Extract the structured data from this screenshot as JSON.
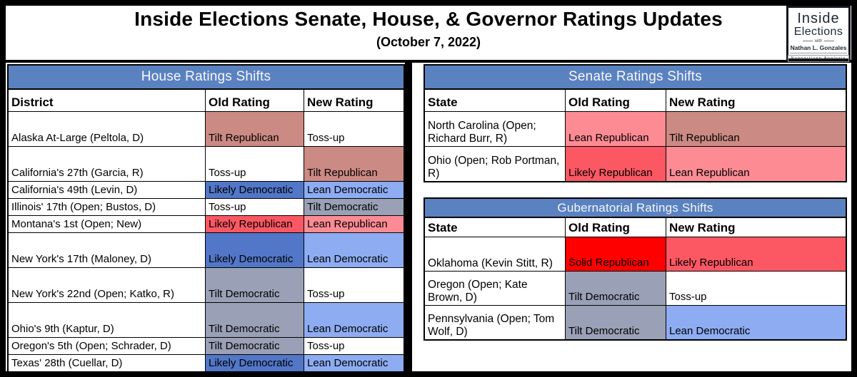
{
  "header": {
    "title": "Inside Elections Senate, House, & Governor Ratings Updates",
    "subtitle": "(October 7, 2022)",
    "logo": {
      "name_top": "Inside",
      "name_bottom": "Elections",
      "with_label": "with",
      "author": "Nathan L. Gonzales",
      "tagline": "Nonpartisan Analysis"
    }
  },
  "colors": {
    "table_header_bg": "#5b82c0",
    "border": "#000000"
  },
  "rating_colors": {
    "Solid Republican": "#fe0000",
    "Likely Republican": "#fb5863",
    "Lean Republican": "#fc8b94",
    "Tilt Republican": "#cb8a83",
    "Toss-up": "#ffffff",
    "Tilt Democratic": "#9aa0b5",
    "Lean Democratic": "#8dacf2",
    "Likely Democratic": "#5277c8"
  },
  "chart_data": {
    "type": "table",
    "tables": {
      "house": {
        "title": "House Ratings Shifts",
        "columns": [
          "District",
          "Old Rating",
          "New Rating"
        ],
        "rows": [
          {
            "name": "Alaska At-Large (Peltola, D)",
            "old": "Tilt Republican",
            "new": "Toss-up",
            "tall": true
          },
          {
            "name": "California's 27th (Garcia, R)",
            "old": "Toss-up",
            "new": "Tilt Republican",
            "tall": true
          },
          {
            "name": "California's 49th (Levin, D)",
            "old": "Likely Democratic",
            "new": "Lean Democratic",
            "tall": false
          },
          {
            "name": "Illinois' 17th (Open; Bustos, D)",
            "old": "Toss-up",
            "new": "Tilt Democratic",
            "tall": false
          },
          {
            "name": "Montana's 1st (Open; New)",
            "old": "Likely Republican",
            "new": "Lean Republican",
            "tall": false
          },
          {
            "name": "New York's 17th (Maloney, D)",
            "old": "Likely Democratic",
            "new": "Lean Democratic",
            "tall": true
          },
          {
            "name": "New York's 22nd (Open; Katko, R)",
            "old": "Tilt Democratic",
            "new": "Toss-up",
            "tall": true
          },
          {
            "name": "Ohio's 9th (Kaptur, D)",
            "old": "Tilt Democratic",
            "new": "Lean Democratic",
            "tall": true
          },
          {
            "name": "Oregon's 5th (Open; Schrader, D)",
            "old": "Tilt Democratic",
            "new": "Toss-up",
            "tall": false
          },
          {
            "name": "Texas' 28th (Cuellar, D)",
            "old": "Likely Democratic",
            "new": "Lean Democratic",
            "tall": false
          }
        ]
      },
      "senate": {
        "title": "Senate Ratings Shifts",
        "columns": [
          "State",
          "Old Rating",
          "New Rating"
        ],
        "rows": [
          {
            "name": "North Carolina (Open; Richard Burr, R)",
            "old": "Lean Republican",
            "new": "Tilt Republican",
            "tall": true
          },
          {
            "name": "Ohio (Open; Rob Portman, R)",
            "old": "Likely Republican",
            "new": "Lean Republican",
            "tall": true
          }
        ]
      },
      "governor": {
        "title": "Gubernatorial Ratings Shifts",
        "columns": [
          "State",
          "Old Rating",
          "New Rating"
        ],
        "rows": [
          {
            "name": "Oklahoma (Kevin Stitt, R)",
            "old": "Solid Republican",
            "new": "Likely Republican",
            "tall": true
          },
          {
            "name": "Oregon (Open; Kate Brown, D)",
            "old": "Tilt Democratic",
            "new": "Toss-up",
            "tall": true
          },
          {
            "name": "Pennsylvania (Open; Tom Wolf, D)",
            "old": "Tilt Democratic",
            "new": "Lean Democratic",
            "tall": true
          }
        ]
      }
    }
  }
}
